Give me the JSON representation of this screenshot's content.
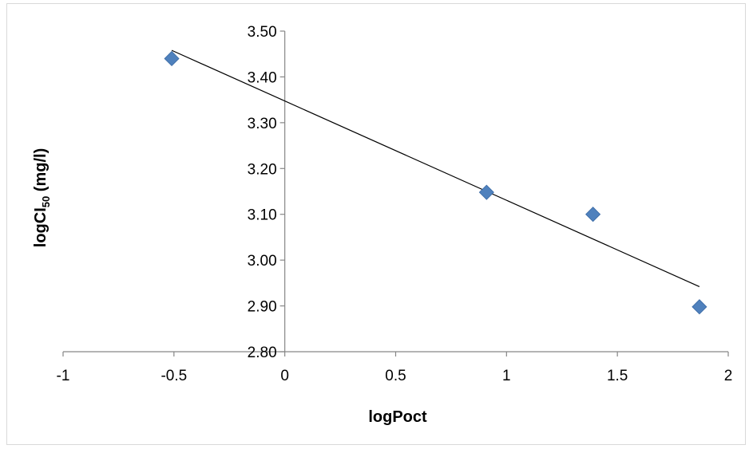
{
  "chart_data": {
    "type": "scatter",
    "title": "",
    "xlabel": "logPoct",
    "ylabel": {
      "main": "logCI",
      "subscript": "50",
      "suffix": " (mg/l)"
    },
    "xlim": [
      -1,
      2
    ],
    "ylim": [
      2.8,
      3.5
    ],
    "x_ticks": [
      -1,
      -0.5,
      0,
      0.5,
      1,
      1.5,
      2
    ],
    "x_tick_labels": [
      "-1",
      "-0.5",
      "0",
      "0.5",
      "1",
      "1.5",
      "2"
    ],
    "y_ticks": [
      2.8,
      2.9,
      3.0,
      3.1,
      3.2,
      3.3,
      3.4,
      3.5
    ],
    "y_tick_labels": [
      "2.80",
      "2.90",
      "3.00",
      "3.10",
      "3.20",
      "3.30",
      "3.40",
      "3.50"
    ],
    "grid": false,
    "legend": "none",
    "series": [
      {
        "marker": "diamond",
        "color": "#4f81bd",
        "points": [
          {
            "x": -0.51,
            "y": 3.44
          },
          {
            "x": 0.91,
            "y": 3.148
          },
          {
            "x": 1.39,
            "y": 3.1
          },
          {
            "x": 1.87,
            "y": 2.898
          }
        ]
      }
    ],
    "trendline": {
      "type": "linear",
      "color": "#000000",
      "from": {
        "x": -0.51,
        "y": 3.458
      },
      "to": {
        "x": 1.87,
        "y": 2.942
      }
    }
  }
}
